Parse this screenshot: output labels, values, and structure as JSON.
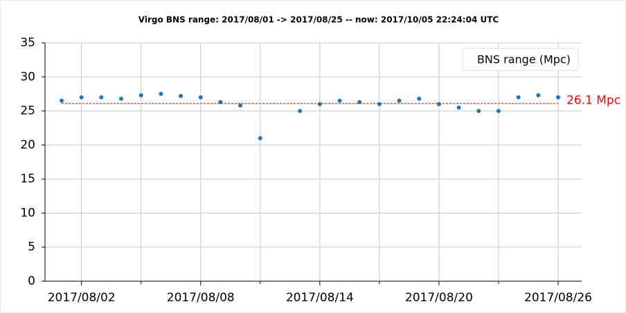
{
  "chart_data": {
    "type": "scatter",
    "title": "Virgo BNS range: 2017/08/01 -> 2017/08/25 -- now: 2017/10/05 22:24:04 UTC",
    "x": [
      "2017/08/01",
      "2017/08/02",
      "2017/08/03",
      "2017/08/04",
      "2017/08/05",
      "2017/08/06",
      "2017/08/07",
      "2017/08/08",
      "2017/08/09",
      "2017/08/10",
      "2017/08/11",
      "2017/08/12",
      "2017/08/13",
      "2017/08/14",
      "2017/08/15",
      "2017/08/16",
      "2017/08/17",
      "2017/08/18",
      "2017/08/19",
      "2017/08/20",
      "2017/08/21",
      "2017/08/22",
      "2017/08/23",
      "2017/08/24",
      "2017/08/25",
      "2017/08/26"
    ],
    "series": [
      {
        "name": "BNS range (Mpc)",
        "color": "#1f77b4",
        "values": [
          26.5,
          27,
          27,
          26.8,
          27.3,
          27.5,
          27.2,
          27,
          26.3,
          25.8,
          21,
          null,
          25,
          26,
          26.5,
          26.3,
          26,
          26.5,
          26.8,
          26,
          25.5,
          25,
          25,
          27,
          27.3,
          27
        ]
      }
    ],
    "xlim": [
      "2017/08/01",
      "2017/08/26"
    ],
    "xticks": [
      "2017/08/02",
      "2017/08/08",
      "2017/08/14",
      "2017/08/20",
      "2017/08/26"
    ],
    "xminorticks": [
      "2017/08/05",
      "2017/08/11",
      "2017/08/17",
      "2017/08/23"
    ],
    "ylim": [
      0,
      35
    ],
    "yticks": [
      0,
      5,
      10,
      15,
      20,
      25,
      30,
      35
    ],
    "grid": true,
    "legend": "upper right",
    "reference_line": {
      "value": 26.1,
      "label": "26.1 Mpc",
      "color": "#ff0000"
    }
  }
}
